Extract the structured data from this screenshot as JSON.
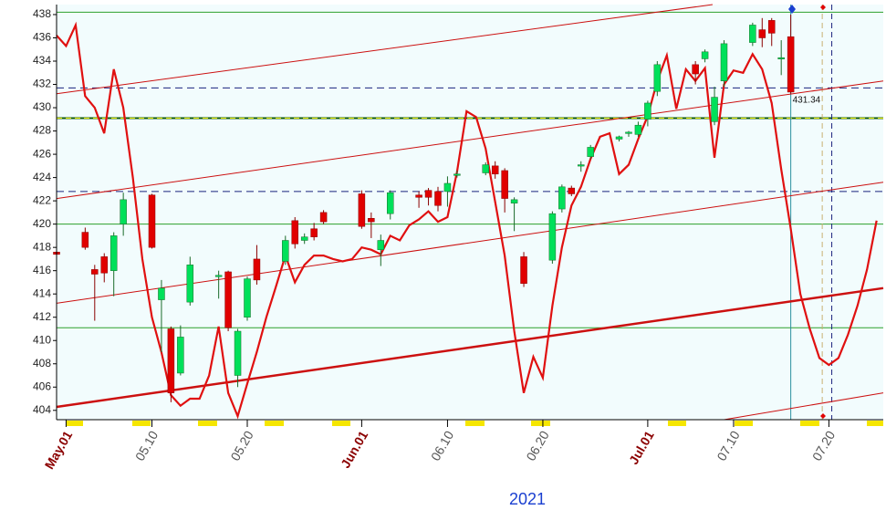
{
  "chart_data": {
    "type": "candlestick",
    "xlabel": "2021",
    "xlim": [
      -1,
      85.7
    ],
    "ylim": [
      403.2,
      438.86
    ],
    "yticks": [
      404,
      406,
      408,
      410,
      412,
      414,
      416,
      418,
      420,
      422,
      424,
      426,
      428,
      430,
      432,
      434,
      436,
      438
    ],
    "xticks": [
      {
        "value": 0,
        "label": "May.01",
        "color": "#8b0000"
      },
      {
        "value": 9,
        "label": "05.10",
        "color": "#555555"
      },
      {
        "value": 19,
        "label": "05.20",
        "color": "#555555"
      },
      {
        "value": 31,
        "label": "Jun.01",
        "color": "#8b0000"
      },
      {
        "value": 40,
        "label": "06.10",
        "color": "#555555"
      },
      {
        "value": 50,
        "label": "06.20",
        "color": "#555555"
      },
      {
        "value": 61,
        "label": "Jul.01",
        "color": "#8b0000"
      },
      {
        "value": 70,
        "label": "07.10",
        "color": "#555555"
      },
      {
        "value": 80,
        "label": "07.20",
        "color": "#555555"
      }
    ],
    "up_color": "#00e05a",
    "down_color": "#e00000",
    "x": [
      -1,
      2,
      3,
      4,
      5,
      6,
      9,
      10,
      11,
      12,
      13,
      16,
      17,
      18,
      19,
      20,
      23,
      24,
      25,
      26,
      27,
      31,
      32,
      33,
      34,
      37,
      38,
      39,
      40,
      41,
      44,
      45,
      46,
      47,
      48,
      51,
      52,
      53,
      54,
      55,
      58,
      59,
      60,
      61,
      62,
      66,
      67,
      68,
      69,
      72,
      73,
      74,
      75,
      76
    ],
    "open": [
      417.6,
      419.3,
      416.1,
      417.2,
      416,
      420,
      422.5,
      413.5,
      411,
      407.2,
      413.3,
      415.5,
      415.9,
      407,
      412,
      417,
      416.8,
      420.3,
      418.6,
      419.6,
      421,
      422.6,
      420.5,
      417.8,
      420.9,
      422.5,
      422.9,
      422.8,
      422.8,
      424.3,
      424.4,
      425,
      424.6,
      421.8,
      417.2,
      416.9,
      421.3,
      423.1,
      425,
      425.8,
      427.3,
      427.8,
      427.7,
      429,
      431.4,
      433.7,
      434.2,
      428.8,
      432.3,
      435.6,
      436.7,
      437.5,
      434.2,
      436.1
    ],
    "high": [
      418,
      419.7,
      416.5,
      417.5,
      419.3,
      422.7,
      422.6,
      415.2,
      411.2,
      411.3,
      417.2,
      416,
      416,
      411,
      415.5,
      418.2,
      419,
      420.6,
      419.2,
      420.1,
      421.2,
      422.9,
      421,
      419.1,
      422.9,
      422.8,
      423.1,
      423.2,
      424.1,
      424.6,
      425.3,
      425.4,
      424.8,
      422.3,
      417.6,
      421.1,
      423.4,
      423.3,
      425.4,
      426.8,
      427.6,
      428,
      428.8,
      430.6,
      434,
      434,
      435,
      431.8,
      435.8,
      437.3,
      437.7,
      437.7,
      435.8,
      438
    ],
    "low": [
      416.5,
      417.8,
      411.7,
      415,
      413.8,
      419,
      417.9,
      409,
      404.7,
      407,
      413,
      413.6,
      410.8,
      406,
      411.7,
      414.8,
      416.5,
      417.9,
      418.3,
      418.6,
      420,
      419.6,
      418.8,
      416.4,
      420.4,
      421.4,
      421.6,
      421.1,
      421.5,
      424,
      424.2,
      423.9,
      421,
      419.4,
      414.6,
      416.6,
      421,
      422.4,
      424.5,
      425.6,
      427.1,
      427.5,
      427.5,
      428.4,
      431,
      432,
      433.9,
      428.5,
      431.8,
      435.3,
      435.2,
      435.3,
      432.8,
      431.2
    ],
    "close": [
      417.4,
      418,
      415.7,
      415.8,
      419,
      422.1,
      418,
      414.5,
      405.5,
      410.3,
      416.5,
      415.6,
      411.1,
      410.8,
      415.3,
      415.2,
      418.6,
      418.3,
      418.9,
      418.9,
      420.2,
      419.8,
      420.2,
      418.6,
      422.7,
      422.3,
      422.3,
      421.6,
      423.5,
      424.3,
      425.1,
      424.3,
      422.2,
      422.1,
      414.9,
      420.9,
      423.2,
      422.6,
      425.1,
      426.6,
      427.5,
      427.9,
      428.5,
      430.4,
      433.7,
      432.9,
      434.8,
      430.9,
      435.5,
      437.1,
      436,
      436.4,
      434.3,
      431.34
    ],
    "overlay_line": {
      "color": "#e01010",
      "x": [
        -1,
        0,
        1,
        2,
        3,
        4,
        5,
        6,
        7,
        8,
        9,
        10,
        11,
        12,
        13,
        14,
        15,
        16,
        17,
        18,
        19,
        20,
        21,
        22,
        23,
        24,
        25,
        26,
        27,
        28,
        29,
        30,
        31,
        32,
        33,
        34,
        35,
        36,
        37,
        38,
        39,
        40,
        41,
        42,
        43,
        44,
        45,
        46,
        47,
        48,
        49,
        50,
        51,
        52,
        53,
        54,
        55,
        56,
        57,
        58,
        59,
        60,
        61,
        62,
        63,
        64,
        65,
        66,
        67,
        68,
        69,
        70,
        71,
        72,
        73,
        74,
        75,
        76,
        77,
        78,
        79,
        80,
        81,
        82,
        83,
        84,
        85
      ],
      "values": [
        436.2,
        435.3,
        437.1,
        431,
        430,
        427.8,
        433.3,
        430,
        424,
        417,
        412,
        409,
        405.3,
        404.4,
        405,
        405,
        407,
        411.2,
        405.5,
        403.5,
        406.3,
        409,
        412,
        414.6,
        417.3,
        415,
        416.5,
        417.3,
        417.3,
        417,
        416.8,
        417,
        418,
        417.8,
        417.4,
        419,
        418.6,
        419.9,
        420.4,
        421.1,
        420.2,
        420.6,
        424.5,
        429.7,
        429.2,
        426.5,
        421.9,
        417.3,
        410.8,
        405.5,
        408.6,
        406.8,
        413,
        418,
        421.6,
        423.2,
        425.6,
        427.5,
        427.8,
        424.3,
        425.1,
        427.3,
        429.3,
        432.3,
        434.5,
        429.9,
        433.3,
        432.3,
        433.4,
        425.7,
        432,
        433.2,
        433,
        434.6,
        433.3,
        430.4,
        424.7,
        419.6,
        414,
        411,
        408.5,
        407.9,
        408.5,
        410.5,
        413,
        416.1,
        420.3
      ]
    },
    "channel_lines": [
      {
        "x": [
          -1,
          67.8
        ],
        "y": [
          431.2,
          438.86
        ],
        "width": 1
      },
      {
        "x": [
          -1,
          85.7
        ],
        "y": [
          422.2,
          432.3
        ],
        "width": 1
      },
      {
        "x": [
          -1,
          85.7
        ],
        "y": [
          413.2,
          423.6
        ],
        "width": 1
      },
      {
        "x": [
          -1,
          85.7
        ],
        "y": [
          404.3,
          414.5
        ],
        "width": 2.5
      },
      {
        "x": [
          69,
          85.7
        ],
        "y": [
          403.2,
          405.5
        ],
        "width": 1
      }
    ],
    "hlines": [
      {
        "y": 438.2,
        "color": "#2ca02c",
        "width": 1,
        "dash": "none"
      },
      {
        "y": 420,
        "color": "#2ca02c",
        "width": 1,
        "dash": "none"
      },
      {
        "y": 411.1,
        "color": "#2ca02c",
        "width": 1,
        "dash": "none"
      },
      {
        "y": 429.1,
        "color": "#0f5a0f",
        "width": 2,
        "dash": "none"
      },
      {
        "y": 429.1,
        "color": "#e8e800",
        "width": 1,
        "dash": "6,4"
      },
      {
        "y": 431.7,
        "color": "#1a237e",
        "width": 1,
        "dash": "8,5"
      },
      {
        "y": 422.8,
        "color": "#1a237e",
        "width": 1,
        "dash": "8,5"
      }
    ],
    "vlines": [
      {
        "x": 76,
        "color": "#2a8f9f",
        "dash": "none"
      },
      {
        "x": 79.3,
        "color": "#c8b070",
        "dash": "6,4"
      },
      {
        "x": 80.3,
        "color": "#1a237e",
        "dash": "6,4"
      }
    ],
    "channel_color": "#cc1010",
    "plot_background": "#f2fcfd"
  }
}
